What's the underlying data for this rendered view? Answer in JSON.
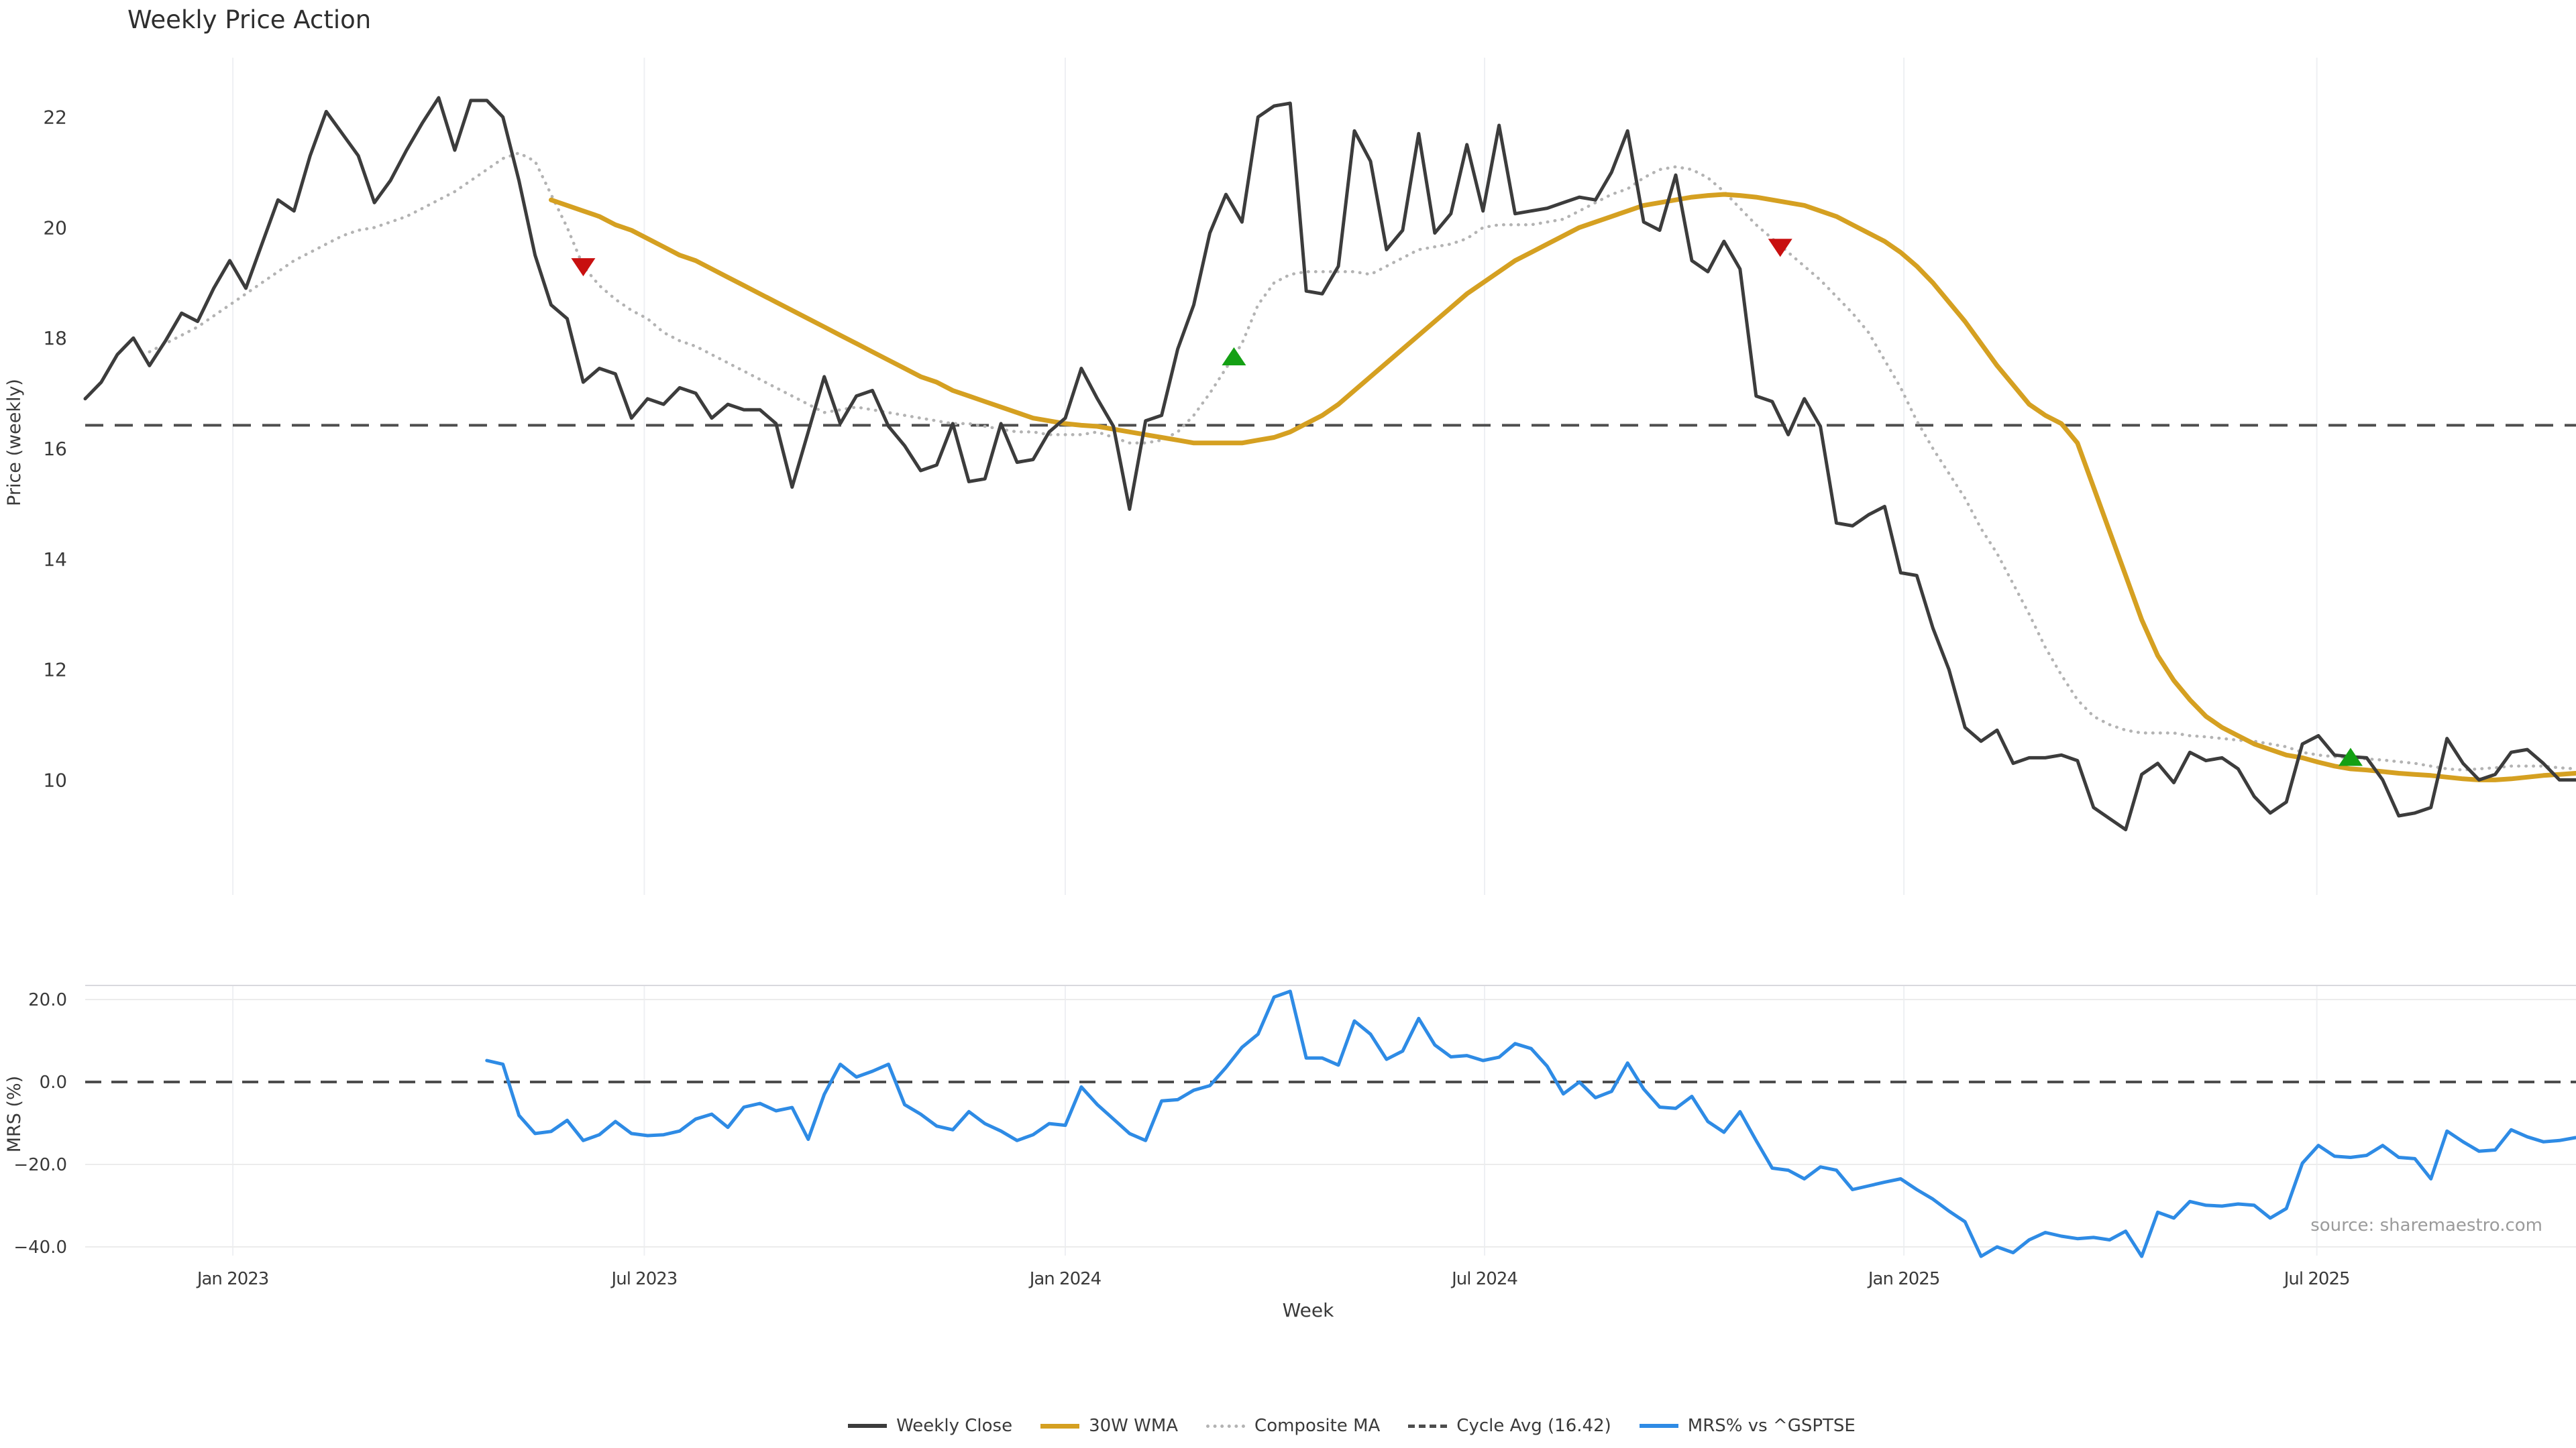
{
  "page": {
    "title": "Weekly Price Action",
    "source": "source: sharemaestro.com",
    "xlabel": "Week"
  },
  "legend": {
    "items": [
      {
        "label": "Weekly Close",
        "color": "#3c3c3c",
        "style": "solid"
      },
      {
        "label": "30W WMA",
        "color": "#d5a021",
        "style": "solid"
      },
      {
        "label": "Composite MA",
        "color": "#b3b3b3",
        "style": "dotted"
      },
      {
        "label": "Cycle Avg (16.42)",
        "color": "#4d4d4d",
        "style": "dashed"
      },
      {
        "label": "MRS% vs ^GSPTSE",
        "color": "#2e8be5",
        "style": "solid"
      }
    ]
  },
  "chart_data": [
    {
      "type": "line",
      "panel": "price",
      "title": "Weekly Price Action",
      "ylabel": "Price (weekly)",
      "yticks": [
        22,
        20,
        18,
        16,
        14,
        12,
        10
      ],
      "ylim": [
        8.8,
        23.1
      ],
      "grid": "vertical-only",
      "cycle_avg_value": 16.42,
      "x_tick_labels": [
        "Jan 2023",
        "Jul 2023",
        "Jan 2024",
        "Jul 2024",
        "Jan 2025",
        "Jul 2025"
      ],
      "x_tick_weeks": [
        9.19,
        34.8,
        61.0,
        87.1,
        113.2,
        138.9
      ],
      "series": [
        {
          "name": "Weekly Close",
          "color": "#3c3c3c",
          "style": "solid",
          "width": 5,
          "start_week": 0,
          "values": [
            16.9,
            17.2,
            17.7,
            18.0,
            17.5,
            17.95,
            18.45,
            18.3,
            18.9,
            19.4,
            18.9,
            19.7,
            20.5,
            20.3,
            21.3,
            22.1,
            21.7,
            21.3,
            20.45,
            20.85,
            21.4,
            21.9,
            22.35,
            21.4,
            22.3,
            22.3,
            22.0,
            20.85,
            19.5,
            18.6,
            18.35,
            17.2,
            17.45,
            17.35,
            16.55,
            16.9,
            16.8,
            17.1,
            17.0,
            16.55,
            16.8,
            16.7,
            16.7,
            16.45,
            15.3,
            16.3,
            17.3,
            16.45,
            16.95,
            17.05,
            16.4,
            16.05,
            15.6,
            15.7,
            16.45,
            15.4,
            15.45,
            16.45,
            15.75,
            15.8,
            16.3,
            16.55,
            17.45,
            16.9,
            16.4,
            14.9,
            16.5,
            16.6,
            17.8,
            18.6,
            19.9,
            20.6,
            20.1,
            22.0,
            22.2,
            22.25,
            18.85,
            18.8,
            19.3,
            21.75,
            21.2,
            19.6,
            19.95,
            21.7,
            19.9,
            20.25,
            21.5,
            20.3,
            21.85,
            20.25,
            20.3,
            20.35,
            20.45,
            20.55,
            20.5,
            21.0,
            21.75,
            20.1,
            19.95,
            20.95,
            19.4,
            19.2,
            19.75,
            19.25,
            16.95,
            16.85,
            16.25,
            16.9,
            16.4,
            14.65,
            14.6,
            14.8,
            14.95,
            13.75,
            13.7,
            12.75,
            12.0,
            10.95,
            10.7,
            10.9,
            10.3,
            10.4,
            10.4,
            10.45,
            10.35,
            9.5,
            9.3,
            9.1,
            10.1,
            10.3,
            9.95,
            10.5,
            10.35,
            10.4,
            10.2,
            9.7,
            9.4,
            9.6,
            10.65,
            10.8,
            10.45,
            10.42,
            10.4,
            10.0,
            9.35,
            9.4,
            9.5,
            10.75,
            10.3,
            10.0,
            10.1,
            10.5,
            10.55,
            10.3,
            10.0,
            10.0
          ]
        },
        {
          "name": "30W WMA",
          "color": "#d5a021",
          "style": "solid",
          "width": 7,
          "start_week": 29,
          "values": [
            20.5,
            20.4,
            20.3,
            20.2,
            20.05,
            19.95,
            19.8,
            19.65,
            19.5,
            19.4,
            19.25,
            19.1,
            18.95,
            18.8,
            18.65,
            18.5,
            18.35,
            18.2,
            18.05,
            17.9,
            17.75,
            17.6,
            17.45,
            17.3,
            17.2,
            17.05,
            16.95,
            16.85,
            16.75,
            16.65,
            16.55,
            16.5,
            16.45,
            16.42,
            16.4,
            16.35,
            16.3,
            16.25,
            16.2,
            16.15,
            16.1,
            16.1,
            16.1,
            16.1,
            16.15,
            16.2,
            16.3,
            16.45,
            16.6,
            16.8,
            17.05,
            17.3,
            17.55,
            17.8,
            18.05,
            18.3,
            18.55,
            18.8,
            19.0,
            19.2,
            19.4,
            19.55,
            19.7,
            19.85,
            20.0,
            20.1,
            20.2,
            20.3,
            20.4,
            20.45,
            20.5,
            20.55,
            20.58,
            20.6,
            20.58,
            20.55,
            20.5,
            20.45,
            20.4,
            20.3,
            20.2,
            20.05,
            19.9,
            19.75,
            19.55,
            19.3,
            19.0,
            18.65,
            18.3,
            17.9,
            17.5,
            17.15,
            16.8,
            16.6,
            16.45,
            16.1,
            15.3,
            14.5,
            13.7,
            12.9,
            12.25,
            11.8,
            11.45,
            11.15,
            10.95,
            10.8,
            10.65,
            10.55,
            10.45,
            10.4,
            10.32,
            10.25,
            10.2,
            10.18,
            10.15,
            10.12,
            10.1,
            10.08,
            10.05,
            10.02,
            10.0,
            10.0,
            10.02,
            10.05,
            10.08,
            10.1,
            10.12
          ]
        },
        {
          "name": "Composite MA",
          "color": "#b3b3b3",
          "style": "dotted",
          "width": 4.5,
          "start_week": 4,
          "values": [
            17.75,
            17.9,
            18.05,
            18.2,
            18.4,
            18.6,
            18.8,
            19.0,
            19.2,
            19.4,
            19.55,
            19.7,
            19.85,
            19.95,
            20.0,
            20.1,
            20.2,
            20.35,
            20.5,
            20.65,
            20.85,
            21.05,
            21.25,
            21.35,
            21.2,
            20.6,
            20.0,
            19.3,
            18.95,
            18.7,
            18.5,
            18.35,
            18.1,
            17.95,
            17.85,
            17.7,
            17.55,
            17.4,
            17.25,
            17.1,
            16.95,
            16.8,
            16.65,
            16.7,
            16.75,
            16.7,
            16.65,
            16.6,
            16.55,
            16.5,
            16.45,
            16.45,
            16.4,
            16.35,
            16.3,
            16.3,
            16.25,
            16.25,
            16.25,
            16.3,
            16.2,
            16.1,
            16.1,
            16.15,
            16.3,
            16.6,
            17.0,
            17.45,
            17.9,
            18.6,
            19.0,
            19.15,
            19.2,
            19.2,
            19.2,
            19.2,
            19.15,
            19.3,
            19.45,
            19.6,
            19.65,
            19.7,
            19.8,
            20.0,
            20.05,
            20.05,
            20.05,
            20.1,
            20.15,
            20.3,
            20.45,
            20.6,
            20.7,
            20.9,
            21.05,
            21.1,
            21.05,
            20.9,
            20.65,
            20.35,
            20.05,
            19.8,
            19.55,
            19.3,
            19.05,
            18.75,
            18.45,
            18.1,
            17.6,
            17.1,
            16.5,
            16.0,
            15.55,
            15.1,
            14.55,
            14.1,
            13.55,
            13.0,
            12.4,
            11.9,
            11.45,
            11.15,
            11.0,
            10.9,
            10.85,
            10.85,
            10.85,
            10.8,
            10.78,
            10.75,
            10.72,
            10.7,
            10.65,
            10.6,
            10.5,
            10.45,
            10.42,
            10.4,
            10.38,
            10.36,
            10.33,
            10.3,
            10.25,
            10.2,
            10.18,
            10.2,
            10.22,
            10.25,
            10.25,
            10.25,
            10.22,
            10.2
          ]
        },
        {
          "name": "Cycle Avg (16.42)",
          "color": "#4d4d4d",
          "style": "dashed",
          "width": 4,
          "value": 16.42
        }
      ],
      "markers": [
        {
          "type": "sell-signal",
          "shape": "triangle-down",
          "color": "#c81010",
          "week": 31,
          "value": 19.3
        },
        {
          "type": "buy-signal",
          "shape": "triangle-up",
          "color": "#14a014",
          "week": 71.5,
          "value": 17.65
        },
        {
          "type": "sell-signal",
          "shape": "triangle-down",
          "color": "#c81010",
          "week": 105.5,
          "value": 19.65
        },
        {
          "type": "buy-signal",
          "shape": "triangle-up",
          "color": "#14a014",
          "week": 141,
          "value": 10.4
        }
      ]
    },
    {
      "type": "line",
      "panel": "mrs",
      "ylabel": "MRS (%)",
      "ytick_labels": [
        "20.0",
        "0.0",
        "−20.0",
        "−40.0"
      ],
      "yticks": [
        20,
        0,
        -20,
        -40
      ],
      "ylim": [
        -47,
        25
      ],
      "zero_line": "dashed",
      "xlabel": "Week",
      "source": "source: sharemaestro.com",
      "series": [
        {
          "name": "MRS% vs ^GSPTSE",
          "color": "#2e8be5",
          "style": "solid",
          "width": 5,
          "start_week": 25,
          "values": [
            5.2,
            4.3,
            -8.1,
            -12.5,
            -12.0,
            -9.3,
            -14.2,
            -12.8,
            -9.6,
            -12.5,
            -13.0,
            -12.8,
            -11.9,
            -9.0,
            -7.8,
            -11.0,
            -6.1,
            -5.2,
            -7.0,
            -6.2,
            -13.9,
            -3.0,
            4.3,
            1.2,
            2.6,
            4.3,
            -5.5,
            -7.8,
            -10.7,
            -11.6,
            -7.2,
            -10.1,
            -11.9,
            -14.2,
            -12.8,
            -10.1,
            -10.5,
            -1.2,
            -5.5,
            -9.0,
            -12.5,
            -14.2,
            -4.6,
            -4.3,
            -2.0,
            -0.9,
            3.5,
            8.4,
            11.6,
            20.6,
            22.0,
            5.8,
            5.8,
            4.1,
            14.8,
            11.6,
            5.5,
            7.5,
            15.4,
            9.0,
            6.1,
            6.4,
            5.2,
            6.0,
            9.3,
            8.1,
            3.8,
            -2.9,
            0.0,
            -3.8,
            -2.3,
            4.6,
            -1.7,
            -6.1,
            -6.4,
            -3.5,
            -9.6,
            -12.2,
            -7.2,
            -14.2,
            -20.9,
            -21.4,
            -23.5,
            -20.6,
            -21.4,
            -26.1,
            -25.2,
            -24.3,
            -23.5,
            -26.1,
            -28.4,
            -31.3,
            -33.9,
            -42.3,
            -40.0,
            -41.4,
            -38.3,
            -36.5,
            -37.4,
            -38.0,
            -37.7,
            -38.3,
            -36.2,
            -42.3,
            -31.6,
            -33.0,
            -29.0,
            -29.9,
            -30.1,
            -29.6,
            -29.9,
            -33.0,
            -30.7,
            -19.7,
            -15.4,
            -18.0,
            -18.3,
            -17.8,
            -15.4,
            -18.3,
            -18.6,
            -23.5,
            -11.9,
            -14.5,
            -16.8,
            -16.5,
            -11.6,
            -13.3,
            -14.5,
            -14.2,
            -13.5
          ]
        }
      ]
    }
  ]
}
